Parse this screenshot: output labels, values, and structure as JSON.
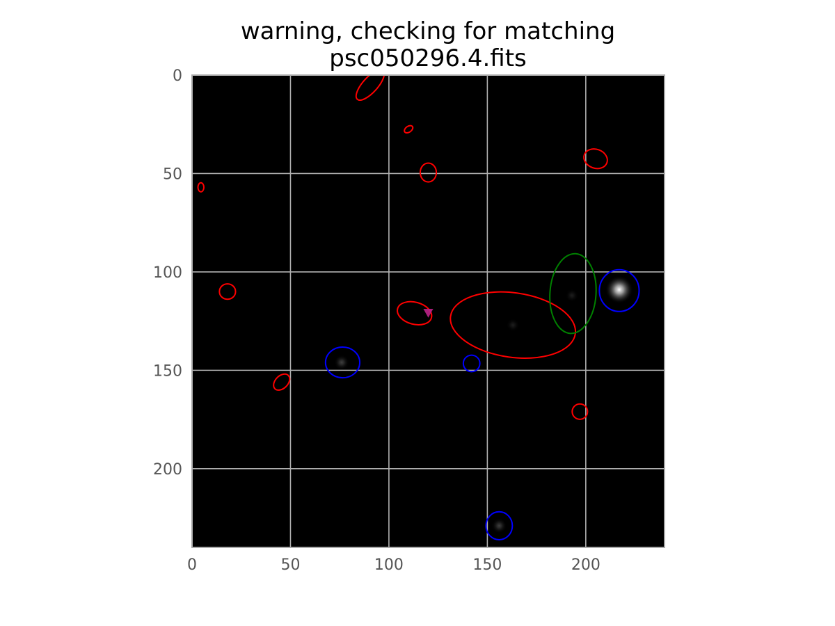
{
  "chart_data": {
    "type": "scatter",
    "kind": "image-with-region-overlays",
    "title_lines": [
      "warning, checking for matching",
      "psc050296.4.fits"
    ],
    "xlabel": "",
    "ylabel": "",
    "xlim": [
      0,
      240
    ],
    "ylim": [
      240,
      0
    ],
    "y_axis_inverted": true,
    "grid": true,
    "background": "#000000",
    "x_ticks": [
      0,
      50,
      100,
      150,
      200
    ],
    "y_ticks": [
      0,
      50,
      100,
      150,
      200
    ],
    "x_tick_labels": [
      "0",
      "50",
      "100",
      "150",
      "200"
    ],
    "y_tick_labels": [
      "0",
      "50",
      "100",
      "150",
      "200"
    ],
    "sources": [
      {
        "x": 217,
        "y": 109,
        "brightness": 1.0
      },
      {
        "x": 76,
        "y": 146,
        "brightness": 0.25
      },
      {
        "x": 156,
        "y": 229,
        "brightness": 0.25
      },
      {
        "x": 163,
        "y": 127,
        "brightness": 0.12
      },
      {
        "x": 193,
        "y": 112,
        "brightness": 0.12
      }
    ],
    "regions": [
      {
        "color": "#ff0000",
        "x": 90.5,
        "y": 5,
        "rx": 3.8,
        "ry": 9.8,
        "angle": 42
      },
      {
        "color": "#ff0000",
        "x": 110,
        "y": 27.5,
        "rx": 2.4,
        "ry": 1.5,
        "angle": -35
      },
      {
        "color": "#ff0000",
        "x": 120,
        "y": 49.5,
        "rx": 4.1,
        "ry": 4.8,
        "angle": 0
      },
      {
        "color": "#ff0000",
        "x": 205,
        "y": 42.5,
        "rx": 6.1,
        "ry": 4.8,
        "angle": 20
      },
      {
        "color": "#ff0000",
        "x": 4.5,
        "y": 57,
        "rx": 1.5,
        "ry": 2.3,
        "angle": 0
      },
      {
        "color": "#ff0000",
        "x": 18,
        "y": 110,
        "rx": 4.1,
        "ry": 3.9,
        "angle": 0
      },
      {
        "color": "#ff0000",
        "x": 113,
        "y": 121,
        "rx": 8.9,
        "ry": 5.6,
        "angle": 15
      },
      {
        "color": "#ff0000",
        "x": 163,
        "y": 127,
        "rx": 32,
        "ry": 16.4,
        "angle": 8
      },
      {
        "color": "#ff0000",
        "x": 45.5,
        "y": 156,
        "rx": 4.8,
        "ry": 3.2,
        "angle": -45
      },
      {
        "color": "#ff0000",
        "x": 197,
        "y": 171,
        "rx": 3.9,
        "ry": 3.9,
        "angle": 0
      },
      {
        "color": "#008000",
        "x": 193.5,
        "y": 111,
        "rx": 11.7,
        "ry": 20.3,
        "angle": 4
      },
      {
        "color": "#0000ff",
        "x": 217,
        "y": 109.5,
        "rx": 10.1,
        "ry": 10.6,
        "angle": 0
      },
      {
        "color": "#0000ff",
        "x": 76.5,
        "y": 146,
        "rx": 8.7,
        "ry": 7.8,
        "angle": 0
      },
      {
        "color": "#0000ff",
        "x": 142,
        "y": 146.5,
        "rx": 4.2,
        "ry": 4.2,
        "angle": 0
      },
      {
        "color": "#0000ff",
        "x": 156,
        "y": 229,
        "rx": 6.7,
        "ry": 7.1,
        "angle": 0
      }
    ],
    "markers": [
      {
        "shape": "triangle-down",
        "color": "#bb2288",
        "x": 120,
        "y": 121,
        "size": 2.5
      }
    ],
    "colors": {
      "grid": "#b0b0b0",
      "frame": "#aaaaaa",
      "tick_label": "#555555"
    }
  }
}
